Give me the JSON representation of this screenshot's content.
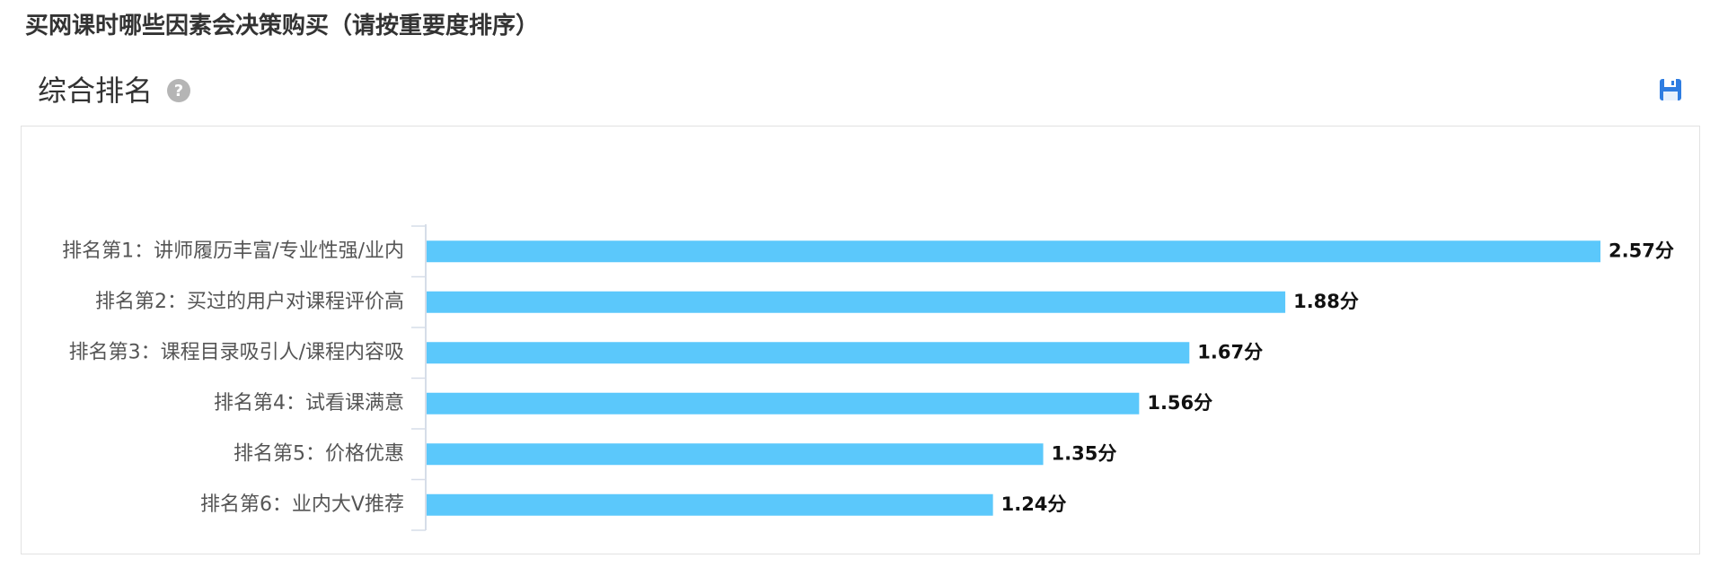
{
  "question_title": "买网课时哪些因素会决策购买（请按重要度排序）",
  "section": {
    "title": "综合排名",
    "help_icon": "question-circle-icon",
    "save_icon": "floppy-disk-icon"
  },
  "colors": {
    "bar": "#5bc8fb",
    "axis": "#d6dde8",
    "label": "#555555",
    "value": "#111111",
    "accent": "#2f7de1"
  },
  "chart_data": {
    "type": "bar",
    "orientation": "horizontal",
    "categories": [
      "排名第1：讲师履历丰富/专业性强/业内",
      "排名第2：买过的用户对课程评价高",
      "排名第3：课程目录吸引人/课程内容吸",
      "排名第4：试看课满意",
      "排名第5：价格优惠",
      "排名第6：业内大V推荐"
    ],
    "values": [
      2.57,
      1.88,
      1.67,
      1.56,
      1.35,
      1.24
    ],
    "value_labels": [
      "2.57分",
      "1.88分",
      "1.67分",
      "1.56分",
      "1.35分",
      "1.24分"
    ],
    "xlim": [
      0,
      2.57
    ],
    "grid": false,
    "legend": "none"
  }
}
